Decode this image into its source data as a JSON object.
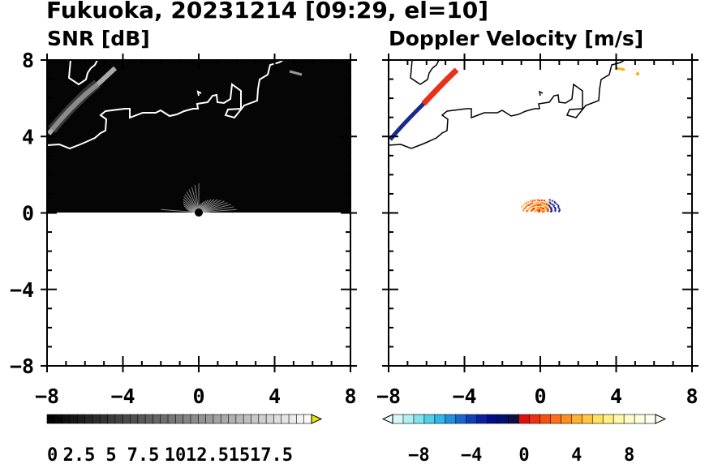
{
  "title": "Fukuoka, 20231214 [09:29, el=10]",
  "chart_data": [
    {
      "type": "heatmap",
      "title": "SNR [dB]",
      "x_ticks": [
        "−8",
        "−4",
        "0",
        "4",
        "8"
      ],
      "y_ticks": [
        "8",
        "4",
        "0",
        "−4",
        "−8"
      ],
      "xlim": [
        -8,
        8
      ],
      "ylim": [
        -8,
        8
      ],
      "colorbar": {
        "ticks": [
          "0",
          "2.5",
          "5",
          "7.5",
          "10",
          "12.5",
          "15",
          "17.5"
        ],
        "range": [
          0,
          17.5
        ],
        "extend": "max",
        "colormap": "grayscale"
      },
      "background_color": "#000000",
      "coast_color": "#ffffff"
    },
    {
      "type": "heatmap",
      "title": "Doppler Velocity [m/s]",
      "x_ticks": [
        "−8",
        "−4",
        "0",
        "4",
        "8"
      ],
      "y_ticks": [],
      "xlim": [
        -8,
        8
      ],
      "ylim": [
        -8,
        8
      ],
      "colorbar": {
        "ticks": [
          "−8",
          "−4",
          "0",
          "4",
          "8"
        ],
        "range": [
          -10,
          10
        ],
        "extend": "both",
        "colormap": "cyan-blue-navy-red-orange-yellow"
      },
      "coast_color": "#000000",
      "colors": {
        "approaching": "#1a2a8c",
        "receding": "#e8301a",
        "far": "#ffb000"
      }
    }
  ]
}
